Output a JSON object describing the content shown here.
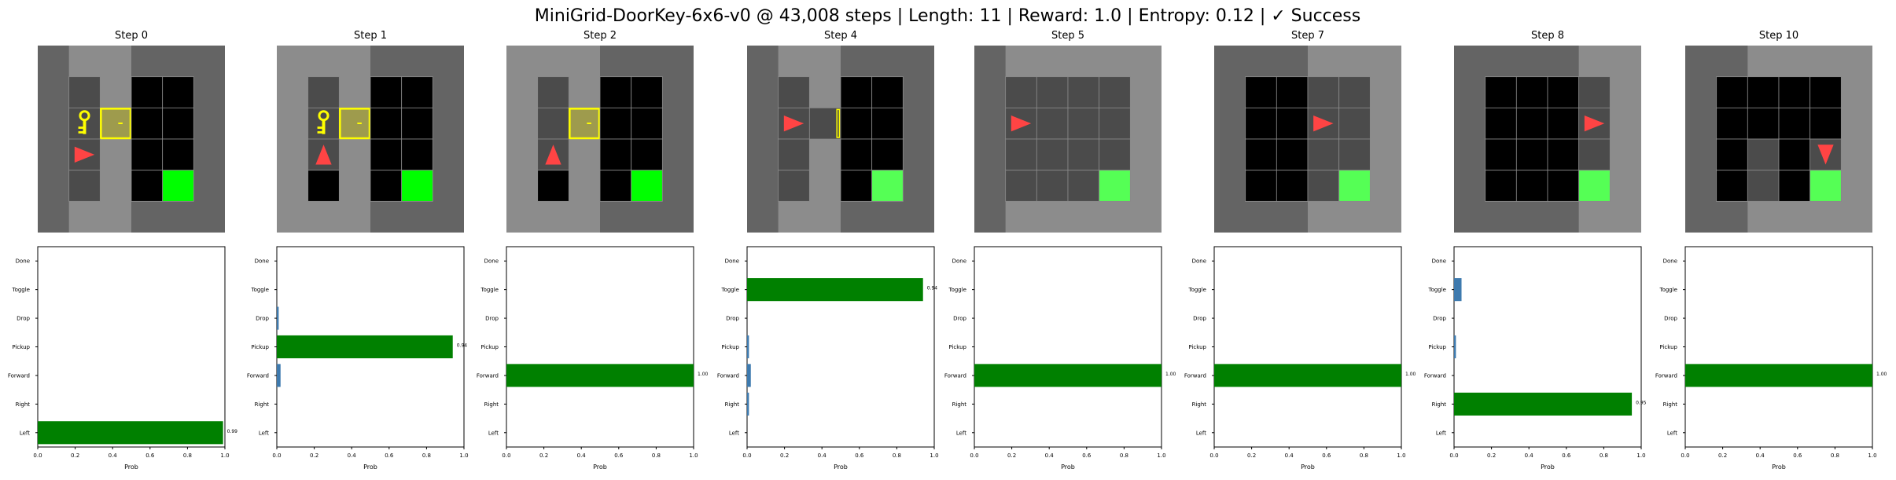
{
  "title": "MiniGrid-DoorKey-6x6-v0 @ 43,008 steps | Length: 11 | Reward: 1.0 | Entropy: 0.12 | ✓ Success",
  "colors": {
    "wall": "#646464",
    "floor_visible": "#8c8c8c",
    "cell_dark": "#4b4b4b",
    "unseen": "#000000",
    "goal": "#00ff00",
    "goal_visible": "#55ff55",
    "door": "#ffff00",
    "key": "#ffff00",
    "agent": "#ff4444",
    "grid_line": "#8a8a8a",
    "chosen_bar": "#008000",
    "other_bar": "#3e7aae"
  },
  "panels": [
    {
      "title": "Step 0",
      "grid": [
        "W W W W W W",
        "W D F U U W",
        "W K O U U W",
        "W A F U U W",
        "W D F U G W",
        "W W W W W W"
      ],
      "bright": [
        "00000",
        "01100",
        "01100",
        "01100",
        "01100",
        "01100"
      ],
      "agent": {
        "row": 3,
        "col": 1,
        "dir": "right"
      },
      "probs": {
        "chosen": "Left",
        "label": "0.99"
      }
    },
    {
      "title": "Step 1",
      "grid": [],
      "agent": {
        "row": 3,
        "col": 1,
        "dir": "up"
      },
      "probs": {
        "chosen": "Pickup",
        "label": "0.94"
      }
    },
    {
      "title": "Step 2",
      "grid": [],
      "agent": {
        "row": 3,
        "col": 1,
        "dir": "up"
      },
      "probs": {
        "chosen": "Forward",
        "label": "1.00"
      }
    },
    {
      "title": "Step 4",
      "grid": [],
      "agent": {
        "row": 2,
        "col": 1,
        "dir": "right"
      },
      "probs": {
        "chosen": "Toggle",
        "label": "0.94"
      }
    },
    {
      "title": "Step 5",
      "grid": [],
      "agent": {
        "row": 2,
        "col": 1,
        "dir": "right"
      },
      "probs": {
        "chosen": "Forward",
        "label": "1.00"
      }
    },
    {
      "title": "Step 7",
      "grid": [],
      "agent": {
        "row": 2,
        "col": 3,
        "dir": "right"
      },
      "probs": {
        "chosen": "Forward",
        "label": "1.00"
      }
    },
    {
      "title": "Step 8",
      "grid": [],
      "agent": {
        "row": 2,
        "col": 4,
        "dir": "right"
      },
      "probs": {
        "chosen": "Right",
        "label": "0.95"
      }
    },
    {
      "title": "Step 10",
      "grid": [],
      "agent": {
        "row": 3,
        "col": 4,
        "dir": "down"
      },
      "probs": {
        "chosen": "Forward",
        "label": "1.00"
      }
    }
  ],
  "chart_data": {
    "type": "bar",
    "orientation": "horizontal",
    "categories": [
      "Left",
      "Right",
      "Forward",
      "Pickup",
      "Drop",
      "Toggle",
      "Done"
    ],
    "xlabel": "Prob",
    "ylabel": "",
    "xlim": [
      0,
      1
    ],
    "xticks": [
      "0.0",
      "0.2",
      "0.4",
      "0.6",
      "0.8",
      "1.0"
    ],
    "series": [
      {
        "title": "Step 0",
        "values": [
          0.99,
          0.0,
          0.0,
          0.0,
          0.0,
          0.0,
          0.0
        ],
        "chosen": 0,
        "label": "0.99"
      },
      {
        "title": "Step 1",
        "values": [
          0.0,
          0.0,
          0.02,
          0.94,
          0.01,
          0.0,
          0.0
        ],
        "chosen": 3,
        "label": "0.94"
      },
      {
        "title": "Step 2",
        "values": [
          0.0,
          0.0,
          1.0,
          0.0,
          0.0,
          0.0,
          0.0
        ],
        "chosen": 2,
        "label": "1.00"
      },
      {
        "title": "Step 4",
        "values": [
          0.0,
          0.01,
          0.02,
          0.01,
          0.0,
          0.94,
          0.0
        ],
        "chosen": 5,
        "label": "0.94"
      },
      {
        "title": "Step 5",
        "values": [
          0.0,
          0.0,
          1.0,
          0.0,
          0.0,
          0.0,
          0.0
        ],
        "chosen": 2,
        "label": "1.00"
      },
      {
        "title": "Step 7",
        "values": [
          0.0,
          0.0,
          1.0,
          0.0,
          0.0,
          0.0,
          0.0
        ],
        "chosen": 2,
        "label": "1.00"
      },
      {
        "title": "Step 8",
        "values": [
          0.0,
          0.95,
          0.0,
          0.01,
          0.0,
          0.04,
          0.0
        ],
        "chosen": 1,
        "label": "0.95"
      },
      {
        "title": "Step 10",
        "values": [
          0.0,
          0.0,
          1.0,
          0.0,
          0.0,
          0.0,
          0.0
        ],
        "chosen": 2,
        "label": "1.00"
      }
    ]
  }
}
